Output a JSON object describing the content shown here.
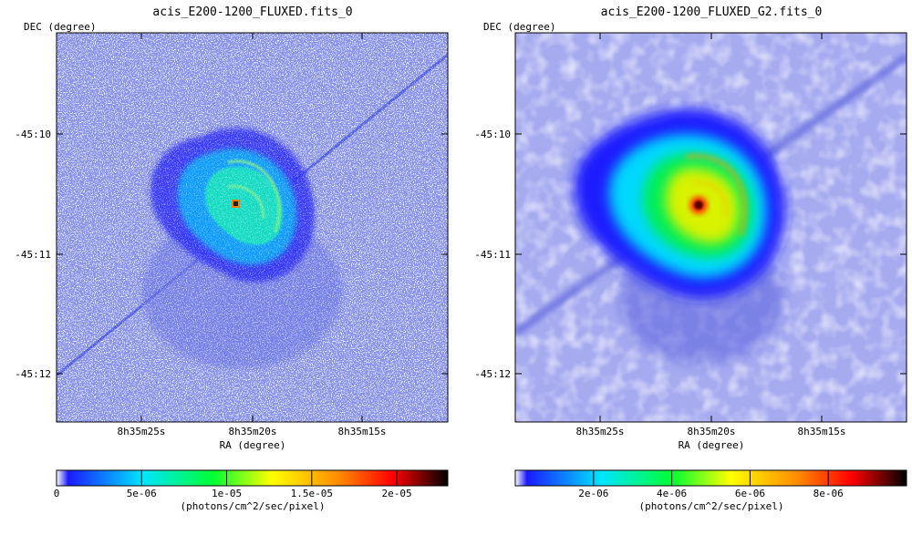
{
  "panels": [
    {
      "title": "acis_E200-1200_FLUXED.fits_0",
      "ylabel": "DEC (degree)",
      "xlabel": "RA (degree)",
      "yticks": [
        "-45:10",
        "-45:11",
        "-45:12"
      ],
      "xticks": [
        "8h35m25s",
        "8h35m20s",
        "8h35m15s"
      ],
      "colorbar_ticks": [
        "0",
        "5e-06",
        "1e-05",
        "1.5e-05",
        "2e-05"
      ],
      "colorbar_label": "(photons/cm^2/sec/pixel)",
      "image_style": "raw"
    },
    {
      "title": "acis_E200-1200_FLUXED_G2.fits_0",
      "ylabel": "DEC (degree)",
      "xlabel": "RA (degree)",
      "yticks": [
        "-45:10",
        "-45:11",
        "-45:12"
      ],
      "xticks": [
        "8h35m25s",
        "8h35m20s",
        "8h35m15s"
      ],
      "colorbar_ticks": [
        "2e-06",
        "4e-06",
        "6e-06",
        "8e-06"
      ],
      "colorbar_label": "(photons/cm^2/sec/pixel)",
      "image_style": "smoothed"
    }
  ],
  "chart_data": [
    {
      "type": "heatmap",
      "title": "acis_E200-1200_FLUXED.fits_0",
      "xlabel": "RA (degree)",
      "ylabel": "DEC (degree)",
      "x_ticks": [
        "8h35m25s",
        "8h35m20s",
        "8h35m15s"
      ],
      "y_ticks": [
        "-45:10",
        "-45:11",
        "-45:12"
      ],
      "colorbar": {
        "label": "(photons/cm^2/sec/pixel)",
        "min": 0,
        "max": 2.3e-05,
        "ticks": [
          0,
          5e-06,
          1e-05,
          1.5e-05,
          2e-05
        ]
      },
      "colormap": [
        "#ffffff",
        "#1a1aff",
        "#00e6ff",
        "#00ff33",
        "#ffff00",
        "#ff8c00",
        "#ff0000",
        "#000000"
      ]
    },
    {
      "type": "heatmap",
      "title": "acis_E200-1200_FLUXED_G2.fits_0",
      "xlabel": "RA (degree)",
      "ylabel": "DEC (degree)",
      "x_ticks": [
        "8h35m25s",
        "8h35m20s",
        "8h35m15s"
      ],
      "y_ticks": [
        "-45:10",
        "-45:11",
        "-45:12"
      ],
      "colorbar": {
        "label": "(photons/cm^2/sec/pixel)",
        "min": 0,
        "max": 1e-05,
        "ticks": [
          2e-06,
          4e-06,
          6e-06,
          8e-06
        ]
      },
      "colormap": [
        "#ffffff",
        "#1a1aff",
        "#00e6ff",
        "#00ff33",
        "#ffff00",
        "#ff8c00",
        "#ff0000",
        "#000000"
      ]
    }
  ]
}
